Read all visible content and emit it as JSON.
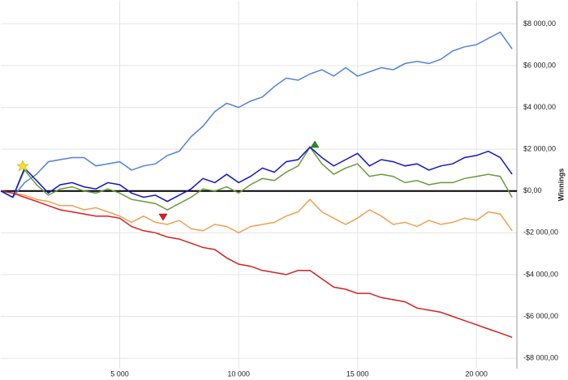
{
  "chart_data": {
    "type": "line",
    "y_label": "Winnings",
    "grid": true,
    "x": [
      0,
      500,
      1000,
      1500,
      2000,
      2500,
      3000,
      3500,
      4000,
      4500,
      5000,
      5500,
      6000,
      6500,
      7000,
      7500,
      8000,
      8500,
      9000,
      9500,
      10000,
      10500,
      11000,
      11500,
      12000,
      12500,
      13000,
      13500,
      14000,
      14500,
      15000,
      15500,
      16000,
      16500,
      17000,
      17500,
      18000,
      18500,
      19000,
      19500,
      20000,
      20500,
      21000,
      21500
    ],
    "xlim": [
      0,
      21700
    ],
    "xticks": [
      {
        "value": 5000,
        "label": "5 000"
      },
      {
        "value": 10000,
        "label": "10 000"
      },
      {
        "value": 15000,
        "label": "15 000"
      },
      {
        "value": 20000,
        "label": "20 000"
      }
    ],
    "ylim": [
      -8500,
      9100
    ],
    "yticks": [
      {
        "value": -8000,
        "label": "-$8 000,00"
      },
      {
        "value": -6000,
        "label": "-$6 000,00"
      },
      {
        "value": -4000,
        "label": "-$4 000,00"
      },
      {
        "value": -2000,
        "label": "-$2 000,00"
      },
      {
        "value": 0,
        "label": "$0,00"
      },
      {
        "value": 2000,
        "label": "$2 000,00"
      },
      {
        "value": 4000,
        "label": "$4 000,00"
      },
      {
        "value": 6000,
        "label": "$6 000,00"
      },
      {
        "value": 8000,
        "label": "$8 000,00"
      }
    ],
    "series": [
      {
        "color": "#5080dc",
        "values": [
          0,
          -300,
          400,
          800,
          1400,
          1500,
          1600,
          1600,
          1200,
          1300,
          1400,
          1000,
          1200,
          1300,
          1700,
          1900,
          2600,
          3100,
          3800,
          4200,
          4000,
          4300,
          4500,
          5000,
          5400,
          5300,
          5600,
          5800,
          5500,
          5900,
          5500,
          5700,
          5900,
          5800,
          6100,
          6200,
          6100,
          6300,
          6700,
          6900,
          7000,
          7300,
          7600,
          6800
        ]
      },
      {
        "color": "#f0a050",
        "values": [
          0,
          -100,
          -200,
          -400,
          -500,
          -700,
          -700,
          -900,
          -800,
          -1000,
          -1200,
          -1500,
          -1200,
          -1500,
          -1600,
          -1400,
          -1800,
          -1900,
          -1600,
          -1700,
          -2000,
          -1700,
          -1600,
          -1500,
          -1200,
          -1000,
          -400,
          -1000,
          -1300,
          -1600,
          -1300,
          -900,
          -1200,
          -1600,
          -1500,
          -1700,
          -1400,
          -1600,
          -1500,
          -1300,
          -1400,
          -1000,
          -1100,
          -1900
        ]
      },
      {
        "color": "#d82020",
        "values": [
          0,
          -100,
          -300,
          -500,
          -700,
          -900,
          -1000,
          -1100,
          -1200,
          -1200,
          -1300,
          -1700,
          -1900,
          -2000,
          -2200,
          -2300,
          -2500,
          -2700,
          -2800,
          -3200,
          -3500,
          -3600,
          -3800,
          -3900,
          -4000,
          -3800,
          -3800,
          -4200,
          -4600,
          -4700,
          -4900,
          -4900,
          -5100,
          -5200,
          -5300,
          -5600,
          -5700,
          -5800,
          -6000,
          -6200,
          -6400,
          -6600,
          -6800,
          -7000
        ]
      },
      {
        "color": "#6a9a3a",
        "values": [
          0,
          -300,
          1000,
          300,
          -200,
          100,
          200,
          0,
          -100,
          100,
          -100,
          -400,
          -500,
          -600,
          -900,
          -600,
          -300,
          100,
          0,
          200,
          -100,
          300,
          600,
          500,
          900,
          1200,
          2100,
          1300,
          800,
          1100,
          1300,
          700,
          800,
          700,
          400,
          500,
          300,
          400,
          400,
          600,
          700,
          800,
          700,
          -300
        ]
      },
      {
        "color": "#1515c0",
        "values": [
          0,
          -300,
          1100,
          500,
          -100,
          300,
          400,
          200,
          100,
          400,
          300,
          -100,
          -300,
          -200,
          -500,
          -200,
          100,
          600,
          400,
          800,
          400,
          700,
          1100,
          900,
          1400,
          1500,
          2100,
          1600,
          1200,
          1500,
          1800,
          1200,
          1500,
          1400,
          1200,
          1300,
          1000,
          1200,
          1300,
          1600,
          1700,
          1900,
          1600,
          800
        ]
      }
    ]
  }
}
